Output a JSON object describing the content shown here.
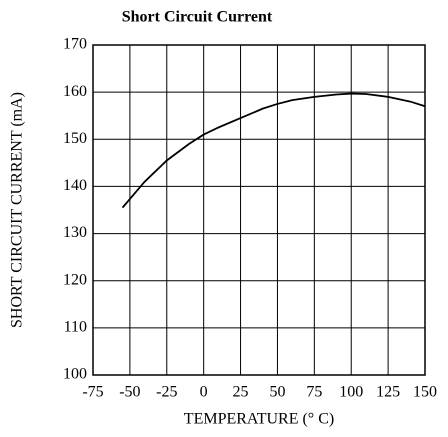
{
  "chart_data": {
    "type": "line",
    "title": "Short Circuit Current",
    "x_label": "TEMPERATURE (° C)",
    "y_label": "SHORT CIRCUIT CURRENT (mA)",
    "x": [
      -55,
      -40,
      -25,
      -10,
      0,
      10,
      25,
      40,
      50,
      60,
      75,
      90,
      100,
      110,
      125,
      140,
      150
    ],
    "series": [
      {
        "color": "#000000",
        "values": [
          135.5,
          141,
          145.5,
          149,
          151,
          152.5,
          154.5,
          156.5,
          157.5,
          158.3,
          159,
          159.5,
          159.7,
          159.6,
          159,
          158,
          157
        ]
      }
    ],
    "xlim": [
      -75,
      150
    ],
    "xticks": [
      -75,
      -50,
      -25,
      0,
      25,
      50,
      75,
      100,
      125,
      150
    ],
    "ylim": [
      100,
      170
    ],
    "yticks": [
      100,
      110,
      120,
      130,
      140,
      150,
      160,
      170
    ],
    "grid": true
  }
}
